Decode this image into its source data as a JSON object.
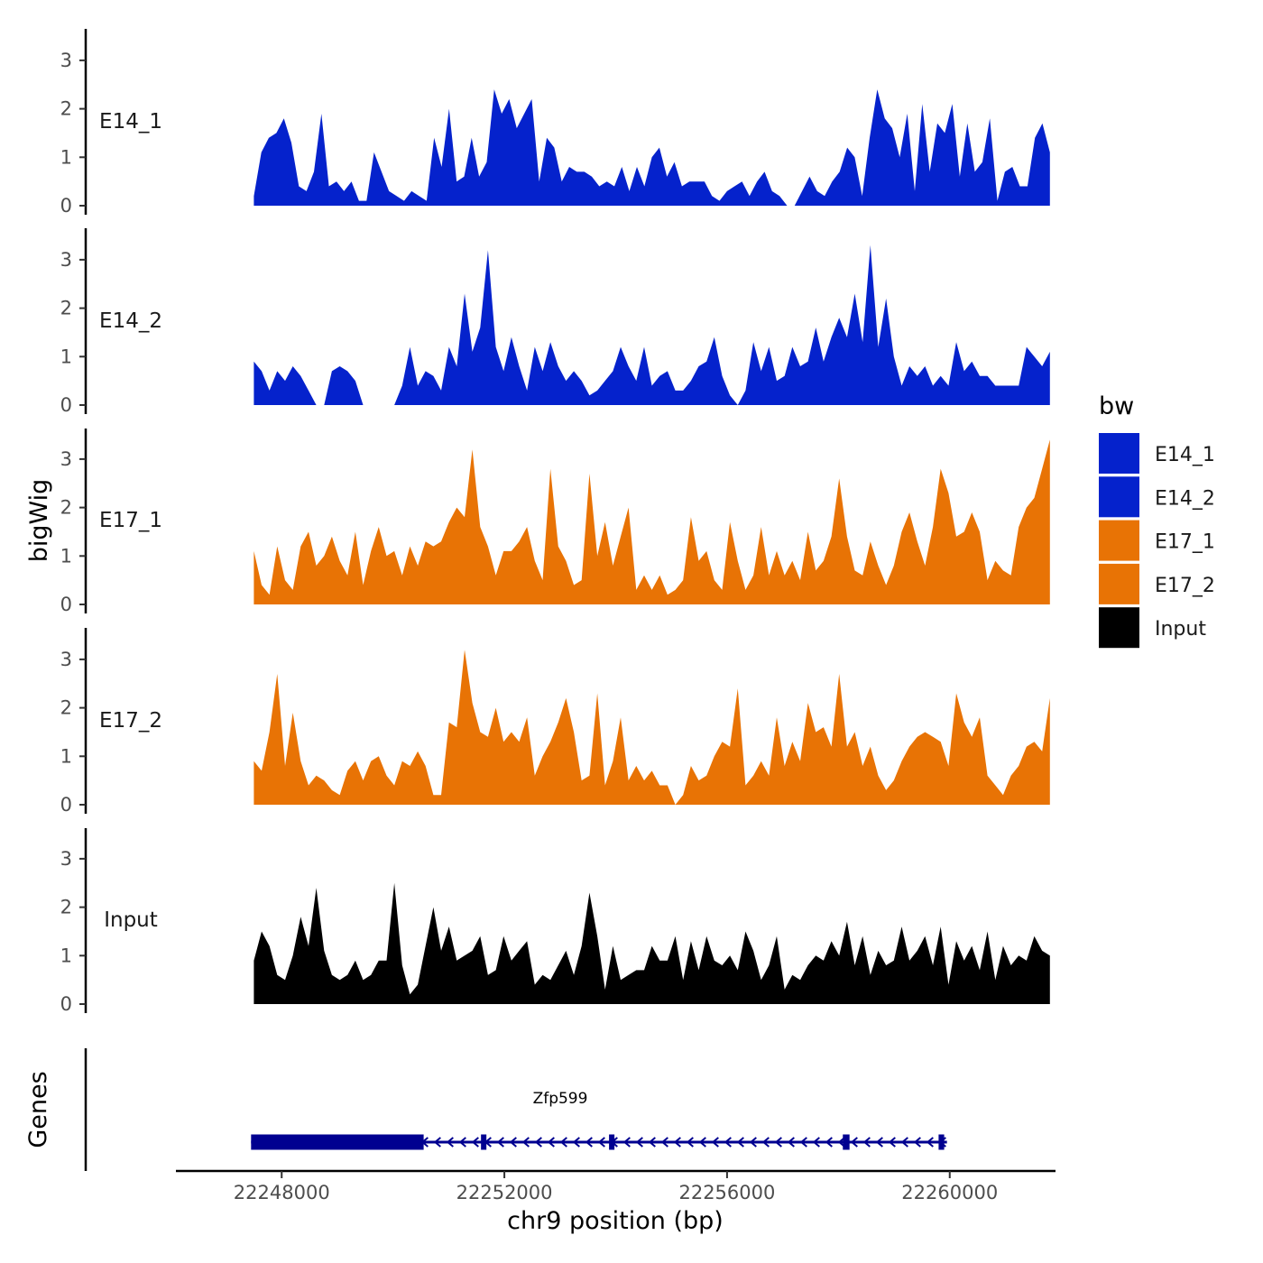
{
  "chart_data": {
    "type": "area",
    "ylabel": "bigWig",
    "xlabel": "chr9 position (bp)",
    "genes_label": "Genes",
    "xlim": [
      22246100,
      22261900
    ],
    "data_xrange": [
      22247500,
      22261800
    ],
    "ylim": [
      0,
      3.6
    ],
    "yticks": [
      0,
      1,
      2,
      3
    ],
    "xticks": [
      22248000,
      22252000,
      22256000,
      22260000
    ],
    "xtick_labels": [
      "22248000",
      "22252000",
      "22256000",
      "22260000"
    ],
    "legend": {
      "title": "bw",
      "placement": "right",
      "entries": [
        {
          "label": "E14_1",
          "color": "#0522CC"
        },
        {
          "label": "E14_2",
          "color": "#0522CC"
        },
        {
          "label": "E17_1",
          "color": "#E87305"
        },
        {
          "label": "E17_2",
          "color": "#E87305"
        },
        {
          "label": "Input",
          "color": "#000000"
        }
      ]
    },
    "series": [
      {
        "name": "E14_1",
        "color": "#0522CC",
        "values": [
          0.2,
          1.1,
          1.4,
          1.5,
          1.8,
          1.3,
          0.4,
          0.3,
          0.7,
          1.9,
          0.4,
          0.5,
          0.3,
          0.5,
          0.1,
          0.1,
          1.1,
          0.7,
          0.3,
          0.2,
          0.1,
          0.3,
          0.2,
          0.1,
          1.4,
          0.8,
          2.0,
          0.5,
          0.6,
          1.4,
          0.6,
          0.9,
          2.4,
          1.9,
          2.2,
          1.6,
          1.9,
          2.2,
          0.5,
          1.4,
          1.2,
          0.5,
          0.8,
          0.7,
          0.7,
          0.6,
          0.4,
          0.5,
          0.4,
          0.8,
          0.3,
          0.8,
          0.4,
          1.0,
          1.2,
          0.6,
          0.9,
          0.4,
          0.5,
          0.5,
          0.5,
          0.2,
          0.1,
          0.3,
          0.4,
          0.5,
          0.2,
          0.5,
          0.7,
          0.3,
          0.2,
          0.0,
          0.0,
          0.3,
          0.6,
          0.3,
          0.2,
          0.5,
          0.7,
          1.2,
          1.0,
          0.2,
          1.4,
          2.4,
          1.8,
          1.6,
          1.0,
          1.9,
          0.3,
          2.1,
          0.7,
          1.7,
          1.5,
          2.1,
          0.6,
          1.7,
          0.7,
          0.9,
          1.8,
          0.1,
          0.7,
          0.8,
          0.4,
          0.4,
          1.4,
          1.7,
          1.1
        ]
      },
      {
        "name": "E14_2",
        "color": "#0522CC",
        "values": [
          0.9,
          0.7,
          0.3,
          0.7,
          0.5,
          0.8,
          0.6,
          0.3,
          0.0,
          0.0,
          0.7,
          0.8,
          0.7,
          0.5,
          0.0,
          0.0,
          0.0,
          0.0,
          0.0,
          0.4,
          1.2,
          0.4,
          0.7,
          0.6,
          0.3,
          1.2,
          0.8,
          2.3,
          1.1,
          1.6,
          3.2,
          1.2,
          0.7,
          1.4,
          0.8,
          0.3,
          1.2,
          0.7,
          1.3,
          0.8,
          0.5,
          0.7,
          0.5,
          0.2,
          0.3,
          0.5,
          0.7,
          1.2,
          0.8,
          0.5,
          1.2,
          0.4,
          0.6,
          0.7,
          0.3,
          0.3,
          0.5,
          0.8,
          0.9,
          1.4,
          0.6,
          0.2,
          0.0,
          0.3,
          1.3,
          0.7,
          1.2,
          0.5,
          0.6,
          1.2,
          0.8,
          0.9,
          1.6,
          0.9,
          1.4,
          1.8,
          1.4,
          2.3,
          1.3,
          3.3,
          1.2,
          2.2,
          1.0,
          0.4,
          0.8,
          0.6,
          0.8,
          0.4,
          0.6,
          0.4,
          1.3,
          0.7,
          0.9,
          0.6,
          0.6,
          0.4,
          0.4,
          0.4,
          0.4,
          1.2,
          1.0,
          0.8,
          1.1
        ]
      },
      {
        "name": "E17_1",
        "color": "#E87305",
        "values": [
          1.1,
          0.4,
          0.2,
          1.2,
          0.5,
          0.3,
          1.2,
          1.5,
          0.8,
          1.0,
          1.4,
          0.9,
          0.6,
          1.5,
          0.4,
          1.1,
          1.6,
          1.0,
          1.1,
          0.6,
          1.2,
          0.8,
          1.3,
          1.2,
          1.3,
          1.7,
          2.0,
          1.8,
          3.2,
          1.6,
          1.2,
          0.6,
          1.1,
          1.1,
          1.3,
          1.6,
          0.9,
          0.5,
          2.8,
          1.2,
          0.9,
          0.4,
          0.5,
          2.7,
          1.0,
          1.7,
          0.8,
          1.4,
          2.0,
          0.3,
          0.6,
          0.3,
          0.6,
          0.2,
          0.3,
          0.5,
          1.8,
          0.9,
          1.1,
          0.5,
          0.3,
          1.7,
          0.9,
          0.3,
          0.6,
          1.6,
          0.6,
          1.1,
          0.6,
          0.9,
          0.5,
          1.5,
          0.7,
          0.9,
          1.4,
          2.6,
          1.4,
          0.7,
          0.6,
          1.3,
          0.8,
          0.4,
          0.8,
          1.5,
          1.9,
          1.3,
          0.8,
          1.6,
          2.8,
          2.3,
          1.4,
          1.5,
          1.9,
          1.5,
          0.5,
          0.9,
          0.7,
          0.6,
          1.6,
          2.0,
          2.2,
          2.8,
          3.4
        ]
      },
      {
        "name": "E17_2",
        "color": "#E87305",
        "values": [
          0.9,
          0.7,
          1.5,
          2.7,
          0.8,
          1.9,
          0.9,
          0.4,
          0.6,
          0.5,
          0.3,
          0.2,
          0.7,
          0.9,
          0.5,
          0.9,
          1.0,
          0.6,
          0.4,
          0.9,
          0.8,
          1.1,
          0.8,
          0.2,
          0.2,
          1.7,
          1.6,
          3.2,
          2.1,
          1.5,
          1.4,
          2.0,
          1.3,
          1.5,
          1.3,
          1.8,
          0.6,
          1.0,
          1.3,
          1.7,
          2.2,
          1.5,
          0.5,
          0.6,
          2.3,
          0.4,
          0.9,
          1.8,
          0.5,
          0.8,
          0.5,
          0.7,
          0.4,
          0.4,
          0.0,
          0.2,
          0.8,
          0.5,
          0.6,
          1.0,
          1.3,
          1.2,
          2.4,
          0.4,
          0.6,
          0.9,
          0.6,
          1.8,
          0.8,
          1.3,
          0.9,
          2.1,
          1.5,
          1.6,
          1.2,
          2.7,
          1.2,
          1.5,
          0.8,
          1.2,
          0.6,
          0.3,
          0.5,
          0.9,
          1.2,
          1.4,
          1.5,
          1.4,
          1.3,
          0.8,
          2.3,
          1.7,
          1.4,
          1.8,
          0.6,
          0.4,
          0.2,
          0.6,
          0.8,
          1.2,
          1.3,
          1.1,
          2.2
        ]
      },
      {
        "name": "Input",
        "color": "#000000",
        "values": [
          0.9,
          1.5,
          1.2,
          0.6,
          0.5,
          1.0,
          1.8,
          1.2,
          2.4,
          1.1,
          0.6,
          0.5,
          0.6,
          0.9,
          0.5,
          0.6,
          0.9,
          0.9,
          2.5,
          0.8,
          0.2,
          0.4,
          1.2,
          2.0,
          1.1,
          1.6,
          0.9,
          1.0,
          1.1,
          1.4,
          0.6,
          0.7,
          1.4,
          0.9,
          1.1,
          1.3,
          0.4,
          0.6,
          0.5,
          0.8,
          1.1,
          0.6,
          1.2,
          2.3,
          1.4,
          0.3,
          1.2,
          0.5,
          0.6,
          0.7,
          0.7,
          1.2,
          0.9,
          0.9,
          1.4,
          0.5,
          1.3,
          0.7,
          1.4,
          0.9,
          0.8,
          1.0,
          0.7,
          1.5,
          1.1,
          0.5,
          0.8,
          1.4,
          0.3,
          0.6,
          0.5,
          0.8,
          1.0,
          0.9,
          1.3,
          1.0,
          1.7,
          0.8,
          1.4,
          0.6,
          1.1,
          0.8,
          0.9,
          1.6,
          0.9,
          1.1,
          1.4,
          0.8,
          1.6,
          0.4,
          1.3,
          0.9,
          1.2,
          0.7,
          1.5,
          0.5,
          1.2,
          0.8,
          1.0,
          0.9,
          1.4,
          1.1,
          1.0
        ]
      }
    ],
    "gene": {
      "name": "Zfp599",
      "strand": "-",
      "start": 22247450,
      "end": 22259950,
      "exons": [
        [
          22247450,
          22250550
        ],
        [
          22251580,
          22251670
        ],
        [
          22253880,
          22253960
        ],
        [
          22258080,
          22258200
        ],
        [
          22259800,
          22259900
        ]
      ]
    }
  }
}
